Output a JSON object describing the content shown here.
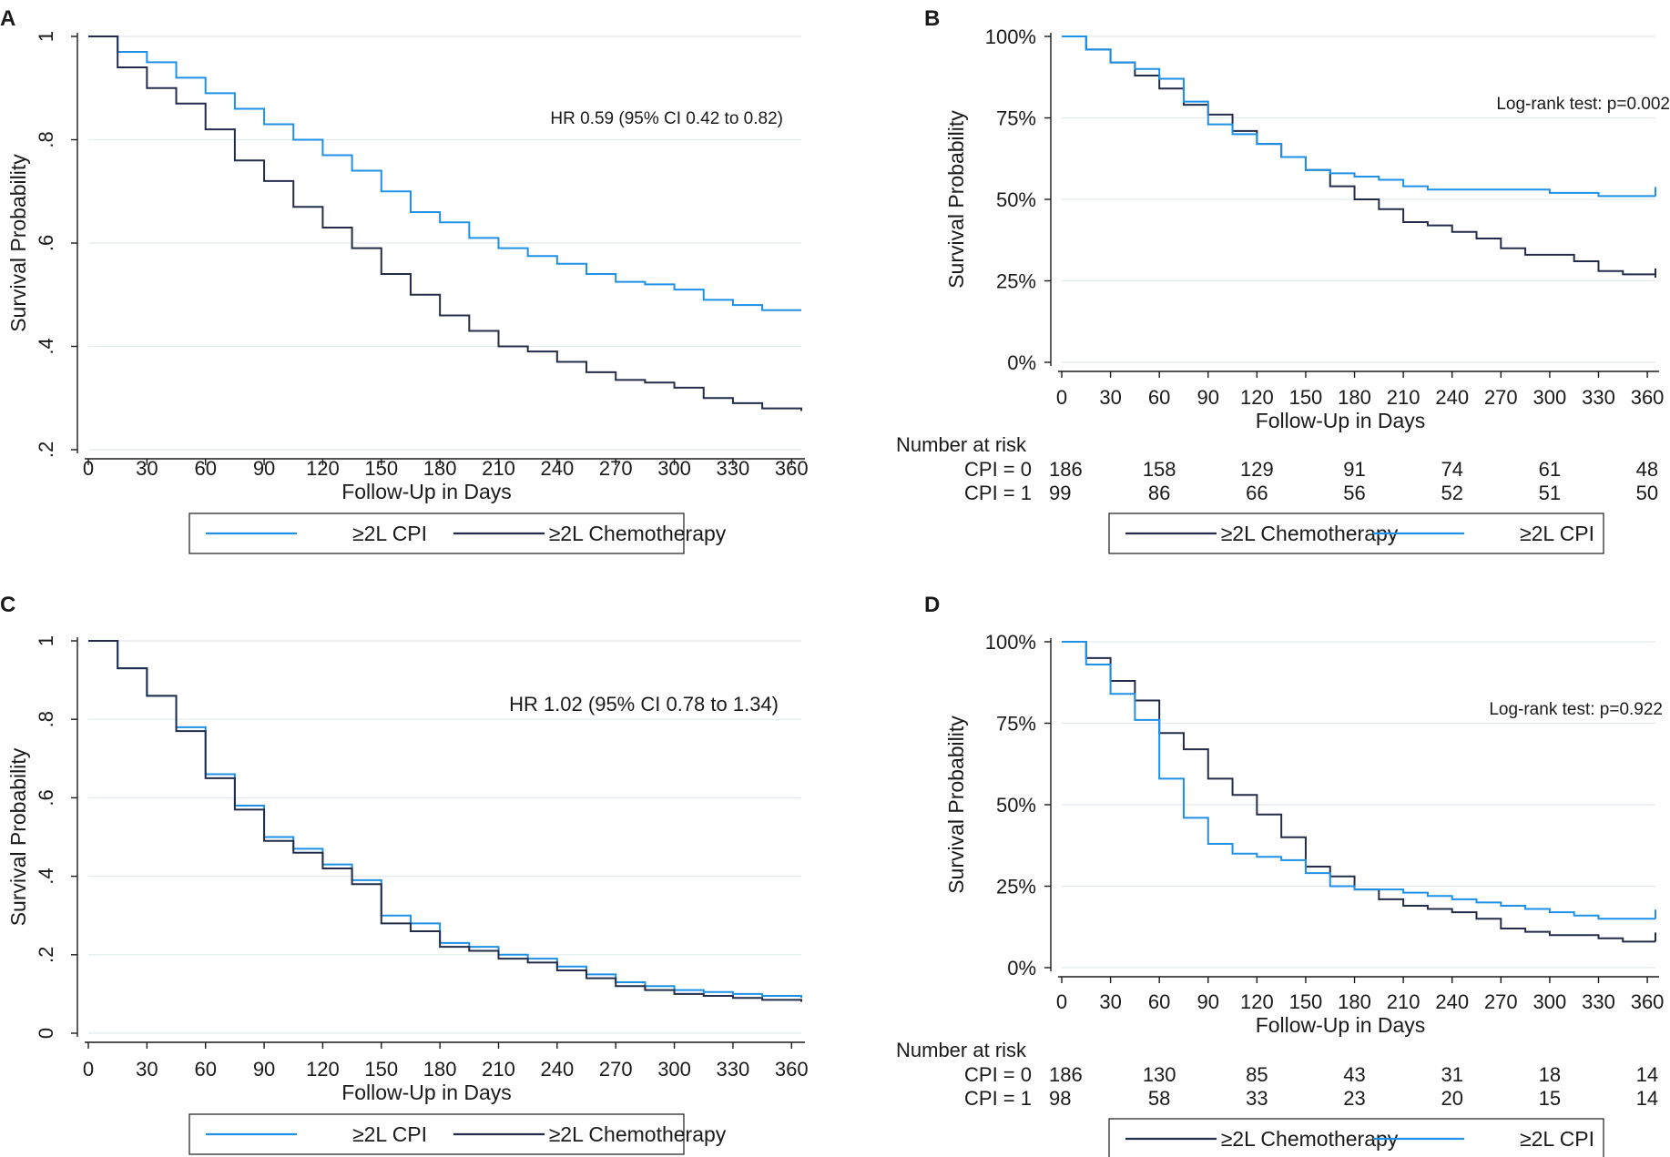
{
  "colors": {
    "cpi": "#1e90e6",
    "chemo": "#232d4a",
    "grid": "#e3ebef",
    "axis": "#1a1a1a"
  },
  "chart_data": [
    {
      "panel": "A",
      "type": "line",
      "style": "plain",
      "xlabel": "Follow-Up in Days",
      "ylabel": "Survival Probability",
      "xlim": [
        0,
        365
      ],
      "ylim": [
        0.2,
        1.0
      ],
      "xticks": [
        0,
        30,
        60,
        90,
        120,
        150,
        180,
        210,
        240,
        270,
        300,
        330,
        360
      ],
      "xtick_labels": [
        "0",
        "30",
        "60",
        "90",
        "120",
        "150",
        "180",
        "210",
        "240",
        "270",
        "300",
        "330",
        "360"
      ],
      "yticks": [
        0.2,
        0.4,
        0.6,
        0.8,
        1.0
      ],
      "ytick_labels": [
        ".2",
        ".4",
        ".6",
        ".8",
        "1"
      ],
      "grid": true,
      "annotation": "HR 0.59 (95% CI 0.42 to 0.82)",
      "series": [
        {
          "name": "≥2L CPI",
          "color_key": "cpi",
          "x": [
            0,
            15,
            30,
            45,
            60,
            75,
            90,
            105,
            120,
            135,
            150,
            165,
            180,
            195,
            210,
            225,
            240,
            255,
            270,
            285,
            300,
            315,
            330,
            345,
            365
          ],
          "y": [
            1.0,
            0.97,
            0.95,
            0.92,
            0.89,
            0.86,
            0.83,
            0.8,
            0.77,
            0.74,
            0.7,
            0.66,
            0.64,
            0.61,
            0.59,
            0.575,
            0.56,
            0.54,
            0.525,
            0.52,
            0.51,
            0.49,
            0.48,
            0.47,
            0.47
          ]
        },
        {
          "name": "≥2L Chemotherapy",
          "color_key": "chemo",
          "x": [
            0,
            15,
            30,
            45,
            60,
            75,
            90,
            105,
            120,
            135,
            150,
            165,
            180,
            195,
            210,
            225,
            240,
            255,
            270,
            285,
            300,
            315,
            330,
            345,
            365
          ],
          "y": [
            1.0,
            0.94,
            0.9,
            0.87,
            0.82,
            0.76,
            0.72,
            0.67,
            0.63,
            0.59,
            0.54,
            0.5,
            0.46,
            0.43,
            0.4,
            0.39,
            0.37,
            0.35,
            0.335,
            0.33,
            0.32,
            0.3,
            0.29,
            0.28,
            0.275
          ]
        }
      ],
      "legend": [
        "≥2L CPI",
        "≥2L Chemotherapy"
      ]
    },
    {
      "panel": "B",
      "type": "line",
      "style": "percent",
      "xlabel": "Follow-Up in Days",
      "ylabel": "Survival Probability",
      "xlim": [
        0,
        365
      ],
      "ylim": [
        0,
        1.0
      ],
      "xticks": [
        0,
        30,
        60,
        90,
        120,
        150,
        180,
        210,
        240,
        270,
        300,
        330,
        360
      ],
      "xtick_labels": [
        "0",
        "30",
        "60",
        "90",
        "120",
        "150",
        "180",
        "210",
        "240",
        "270",
        "300",
        "330",
        "360"
      ],
      "yticks": [
        0,
        0.25,
        0.5,
        0.75,
        1.0
      ],
      "ytick_labels": [
        "0%",
        "25%",
        "50%",
        "75%",
        "100%"
      ],
      "grid": true,
      "annotation": "Log-rank test: p=0.002",
      "series": [
        {
          "name": "≥2L Chemotherapy",
          "color_key": "chemo",
          "x": [
            0,
            15,
            30,
            45,
            60,
            75,
            90,
            105,
            120,
            135,
            150,
            165,
            180,
            195,
            210,
            225,
            240,
            255,
            270,
            285,
            300,
            315,
            330,
            345,
            365
          ],
          "y": [
            1.0,
            0.96,
            0.92,
            0.88,
            0.84,
            0.79,
            0.76,
            0.71,
            0.67,
            0.63,
            0.59,
            0.54,
            0.5,
            0.47,
            0.43,
            0.42,
            0.4,
            0.38,
            0.35,
            0.33,
            0.33,
            0.31,
            0.28,
            0.27,
            0.26
          ]
        },
        {
          "name": "≥2L CPI",
          "color_key": "cpi",
          "x": [
            0,
            15,
            30,
            45,
            60,
            75,
            90,
            105,
            120,
            135,
            150,
            165,
            180,
            195,
            210,
            225,
            240,
            255,
            270,
            285,
            300,
            315,
            330,
            345,
            365
          ],
          "y": [
            1.0,
            0.96,
            0.92,
            0.9,
            0.87,
            0.8,
            0.73,
            0.7,
            0.67,
            0.63,
            0.59,
            0.58,
            0.57,
            0.56,
            0.54,
            0.53,
            0.53,
            0.53,
            0.53,
            0.53,
            0.52,
            0.52,
            0.51,
            0.51,
            0.51
          ]
        }
      ],
      "risk_table": {
        "title": "Number at risk",
        "rows": [
          {
            "label": "CPI = 0",
            "values": [
              "186",
              "158",
              "129",
              "91",
              "74",
              "61",
              "48"
            ]
          },
          {
            "label": "CPI = 1",
            "values": [
              "99",
              "86",
              "66",
              "56",
              "52",
              "51",
              "50"
            ]
          }
        ]
      },
      "legend": [
        "≥2L Chemotherapy",
        "≥2L CPI"
      ]
    },
    {
      "panel": "C",
      "type": "line",
      "style": "plain",
      "xlabel": "Follow-Up in Days",
      "ylabel": "Survival Probability",
      "xlim": [
        0,
        365
      ],
      "ylim": [
        0,
        1.0
      ],
      "xticks": [
        0,
        30,
        60,
        90,
        120,
        150,
        180,
        210,
        240,
        270,
        300,
        330,
        360
      ],
      "xtick_labels": [
        "0",
        "30",
        "60",
        "90",
        "120",
        "150",
        "180",
        "210",
        "240",
        "270",
        "300",
        "330",
        "360"
      ],
      "yticks": [
        0,
        0.2,
        0.4,
        0.6,
        0.8,
        1.0
      ],
      "ytick_labels": [
        "0",
        ".2",
        ".4",
        ".6",
        ".8",
        "1"
      ],
      "grid": true,
      "annotation": "HR 1.02 (95% CI 0.78 to 1.34)",
      "series": [
        {
          "name": "≥2L CPI",
          "color_key": "cpi",
          "x": [
            0,
            15,
            30,
            45,
            60,
            75,
            90,
            105,
            120,
            135,
            150,
            165,
            180,
            195,
            210,
            225,
            240,
            255,
            270,
            285,
            300,
            315,
            330,
            345,
            365
          ],
          "y": [
            1.0,
            0.93,
            0.86,
            0.78,
            0.66,
            0.58,
            0.5,
            0.47,
            0.43,
            0.39,
            0.3,
            0.28,
            0.23,
            0.22,
            0.2,
            0.19,
            0.17,
            0.15,
            0.13,
            0.12,
            0.11,
            0.105,
            0.1,
            0.095,
            0.09
          ]
        },
        {
          "name": "≥2L Chemotherapy",
          "color_key": "chemo",
          "x": [
            0,
            15,
            30,
            45,
            60,
            75,
            90,
            105,
            120,
            135,
            150,
            165,
            180,
            195,
            210,
            225,
            240,
            255,
            270,
            285,
            300,
            315,
            330,
            345,
            365
          ],
          "y": [
            1.0,
            0.93,
            0.86,
            0.77,
            0.65,
            0.57,
            0.49,
            0.46,
            0.42,
            0.38,
            0.28,
            0.26,
            0.22,
            0.21,
            0.19,
            0.18,
            0.16,
            0.14,
            0.12,
            0.11,
            0.1,
            0.095,
            0.09,
            0.085,
            0.08
          ]
        }
      ],
      "legend": [
        "≥2L CPI",
        "≥2L Chemotherapy"
      ]
    },
    {
      "panel": "D",
      "type": "line",
      "style": "percent",
      "xlabel": "Follow-Up in Days",
      "ylabel": "Survival Probability",
      "xlim": [
        0,
        365
      ],
      "ylim": [
        0,
        1.0
      ],
      "xticks": [
        0,
        30,
        60,
        90,
        120,
        150,
        180,
        210,
        240,
        270,
        300,
        330,
        360
      ],
      "xtick_labels": [
        "0",
        "30",
        "60",
        "90",
        "120",
        "150",
        "180",
        "210",
        "240",
        "270",
        "300",
        "330",
        "360"
      ],
      "yticks": [
        0,
        0.25,
        0.5,
        0.75,
        1.0
      ],
      "ytick_labels": [
        "0%",
        "25%",
        "50%",
        "75%",
        "100%"
      ],
      "grid": true,
      "annotation": "Log-rank test: p=0.922",
      "series": [
        {
          "name": "≥2L Chemotherapy",
          "color_key": "chemo",
          "x": [
            0,
            15,
            30,
            45,
            60,
            75,
            90,
            105,
            120,
            135,
            150,
            165,
            180,
            195,
            210,
            225,
            240,
            255,
            270,
            285,
            300,
            315,
            330,
            345,
            365
          ],
          "y": [
            1.0,
            0.95,
            0.88,
            0.82,
            0.72,
            0.67,
            0.58,
            0.53,
            0.47,
            0.4,
            0.31,
            0.28,
            0.24,
            0.21,
            0.19,
            0.18,
            0.17,
            0.15,
            0.12,
            0.11,
            0.1,
            0.1,
            0.09,
            0.08,
            0.08
          ]
        },
        {
          "name": "≥2L CPI",
          "color_key": "cpi",
          "x": [
            0,
            15,
            30,
            45,
            60,
            75,
            90,
            105,
            120,
            135,
            150,
            165,
            180,
            195,
            210,
            225,
            240,
            255,
            270,
            285,
            300,
            315,
            330,
            345,
            365
          ],
          "y": [
            1.0,
            0.93,
            0.84,
            0.76,
            0.58,
            0.46,
            0.38,
            0.35,
            0.34,
            0.33,
            0.29,
            0.25,
            0.24,
            0.24,
            0.23,
            0.22,
            0.21,
            0.2,
            0.19,
            0.18,
            0.17,
            0.16,
            0.15,
            0.15,
            0.15
          ]
        }
      ],
      "risk_table": {
        "title": "Number at risk",
        "rows": [
          {
            "label": "CPI = 0",
            "values": [
              "186",
              "130",
              "85",
              "43",
              "31",
              "18",
              "14"
            ]
          },
          {
            "label": "CPI = 1",
            "values": [
              "98",
              "58",
              "33",
              "23",
              "20",
              "15",
              "14"
            ]
          }
        ]
      },
      "legend": [
        "≥2L Chemotherapy",
        "≥2L CPI"
      ]
    }
  ]
}
